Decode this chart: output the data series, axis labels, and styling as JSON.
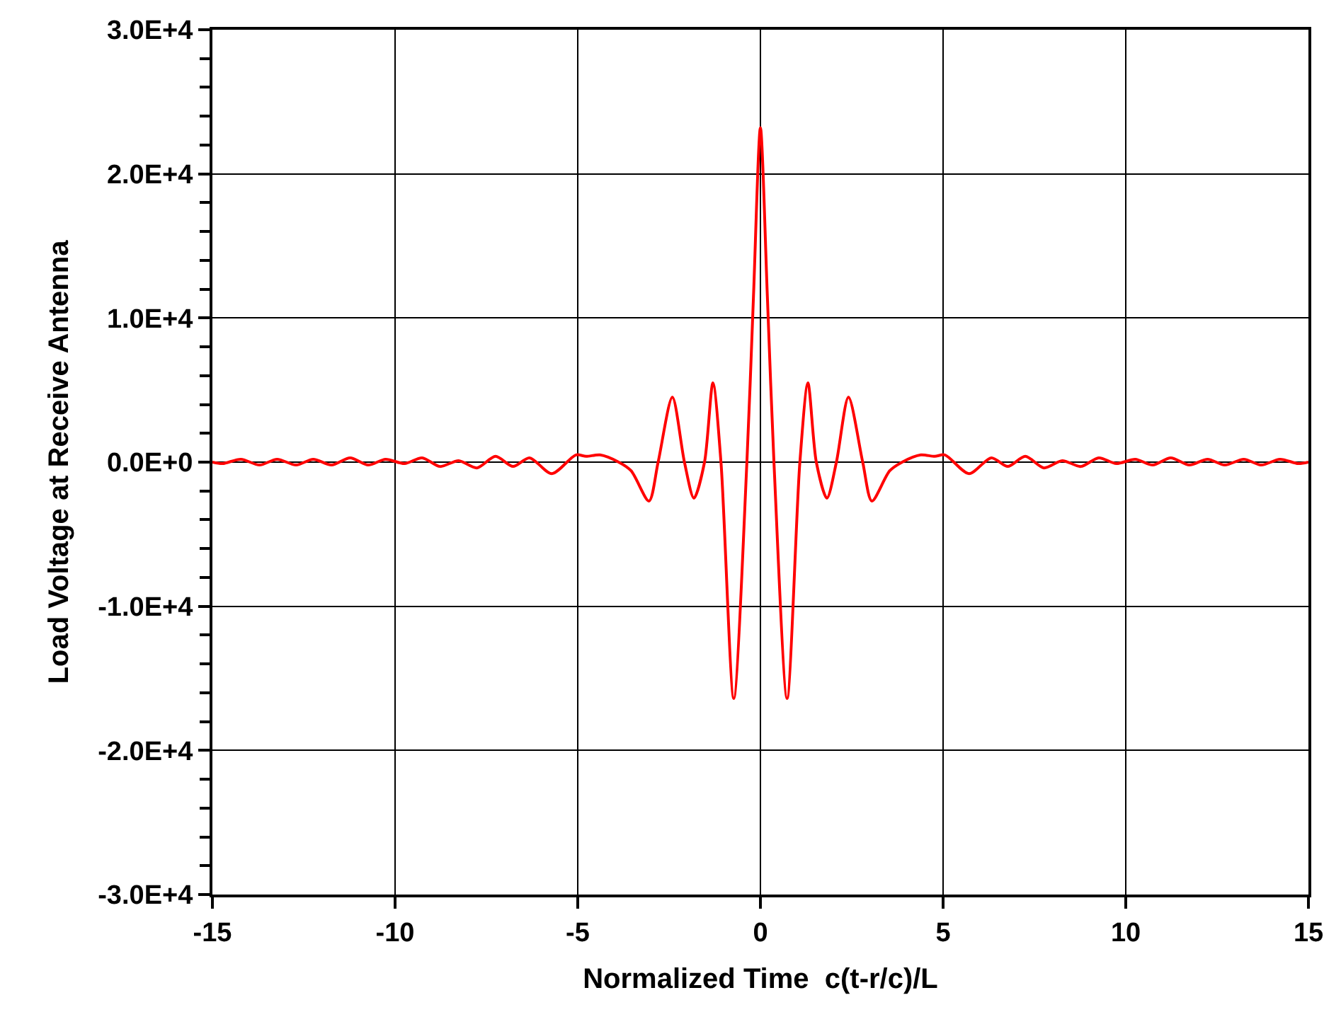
{
  "chart_data": {
    "type": "line",
    "xlabel": "Normalized Time  c(t-r/c)/L",
    "ylabel": "Load Voltage at Receive Antenna",
    "xlim": [
      -15,
      15
    ],
    "xticks": [
      -15,
      -10,
      -5,
      0,
      5,
      10,
      15
    ],
    "ylim": [
      -30000,
      30000
    ],
    "yticks": [
      {
        "value": -30000,
        "label": "-3.0E+4"
      },
      {
        "value": -20000,
        "label": "-2.0E+4"
      },
      {
        "value": -10000,
        "label": "-1.0E+4"
      },
      {
        "value": 0,
        "label": "0.0E+0"
      },
      {
        "value": 10000,
        "label": "1.0E+4"
      },
      {
        "value": 20000,
        "label": "2.0E+4"
      },
      {
        "value": 30000,
        "label": "3.0E+4"
      }
    ],
    "grid": true,
    "marker": "none",
    "line_style": "solid",
    "series": [
      {
        "color": "#ff0000",
        "x": [
          -15,
          -14.72,
          -14.22,
          -13.71,
          -13.23,
          -12.71,
          -12.24,
          -11.74,
          -11.23,
          -10.74,
          -10.26,
          -9.74,
          -9.26,
          -8.77,
          -8.26,
          -7.76,
          -7.25,
          -6.77,
          -6.32,
          -5.71,
          -5.05,
          -4.77,
          -4.39,
          -3.88,
          -3.54,
          -3.05,
          -2.8,
          -2.41,
          -2.08,
          -1.82,
          -1.53,
          -1.3,
          -1.08,
          -0.73,
          -0.37,
          -0.19,
          0,
          0.19,
          0.37,
          0.73,
          1.08,
          1.3,
          1.53,
          1.82,
          2.08,
          2.41,
          2.8,
          3.05,
          3.54,
          3.88,
          4.39,
          4.77,
          5.05,
          5.71,
          6.32,
          6.77,
          7.25,
          7.76,
          8.26,
          8.77,
          9.26,
          9.74,
          10.26,
          10.74,
          11.23,
          11.74,
          12.24,
          12.71,
          13.23,
          13.71,
          14.22,
          14.72,
          15
        ],
        "values": [
          0,
          -100,
          200,
          -200,
          200,
          -200,
          200,
          -200,
          300,
          -200,
          200,
          -100,
          300,
          -300,
          100,
          -400,
          400,
          -300,
          300,
          -800,
          500,
          400,
          500,
          0,
          -600,
          -2700,
          0,
          4500,
          0,
          -2500,
          0,
          5500,
          0,
          -16400,
          0,
          11500,
          23200,
          11500,
          0,
          -16400,
          0,
          5500,
          0,
          -2500,
          0,
          4500,
          0,
          -2700,
          -600,
          0,
          500,
          400,
          500,
          -800,
          300,
          -300,
          400,
          -400,
          100,
          -300,
          300,
          -100,
          200,
          -200,
          300,
          -200,
          200,
          -200,
          200,
          -200,
          200,
          -100,
          0
        ]
      }
    ]
  }
}
